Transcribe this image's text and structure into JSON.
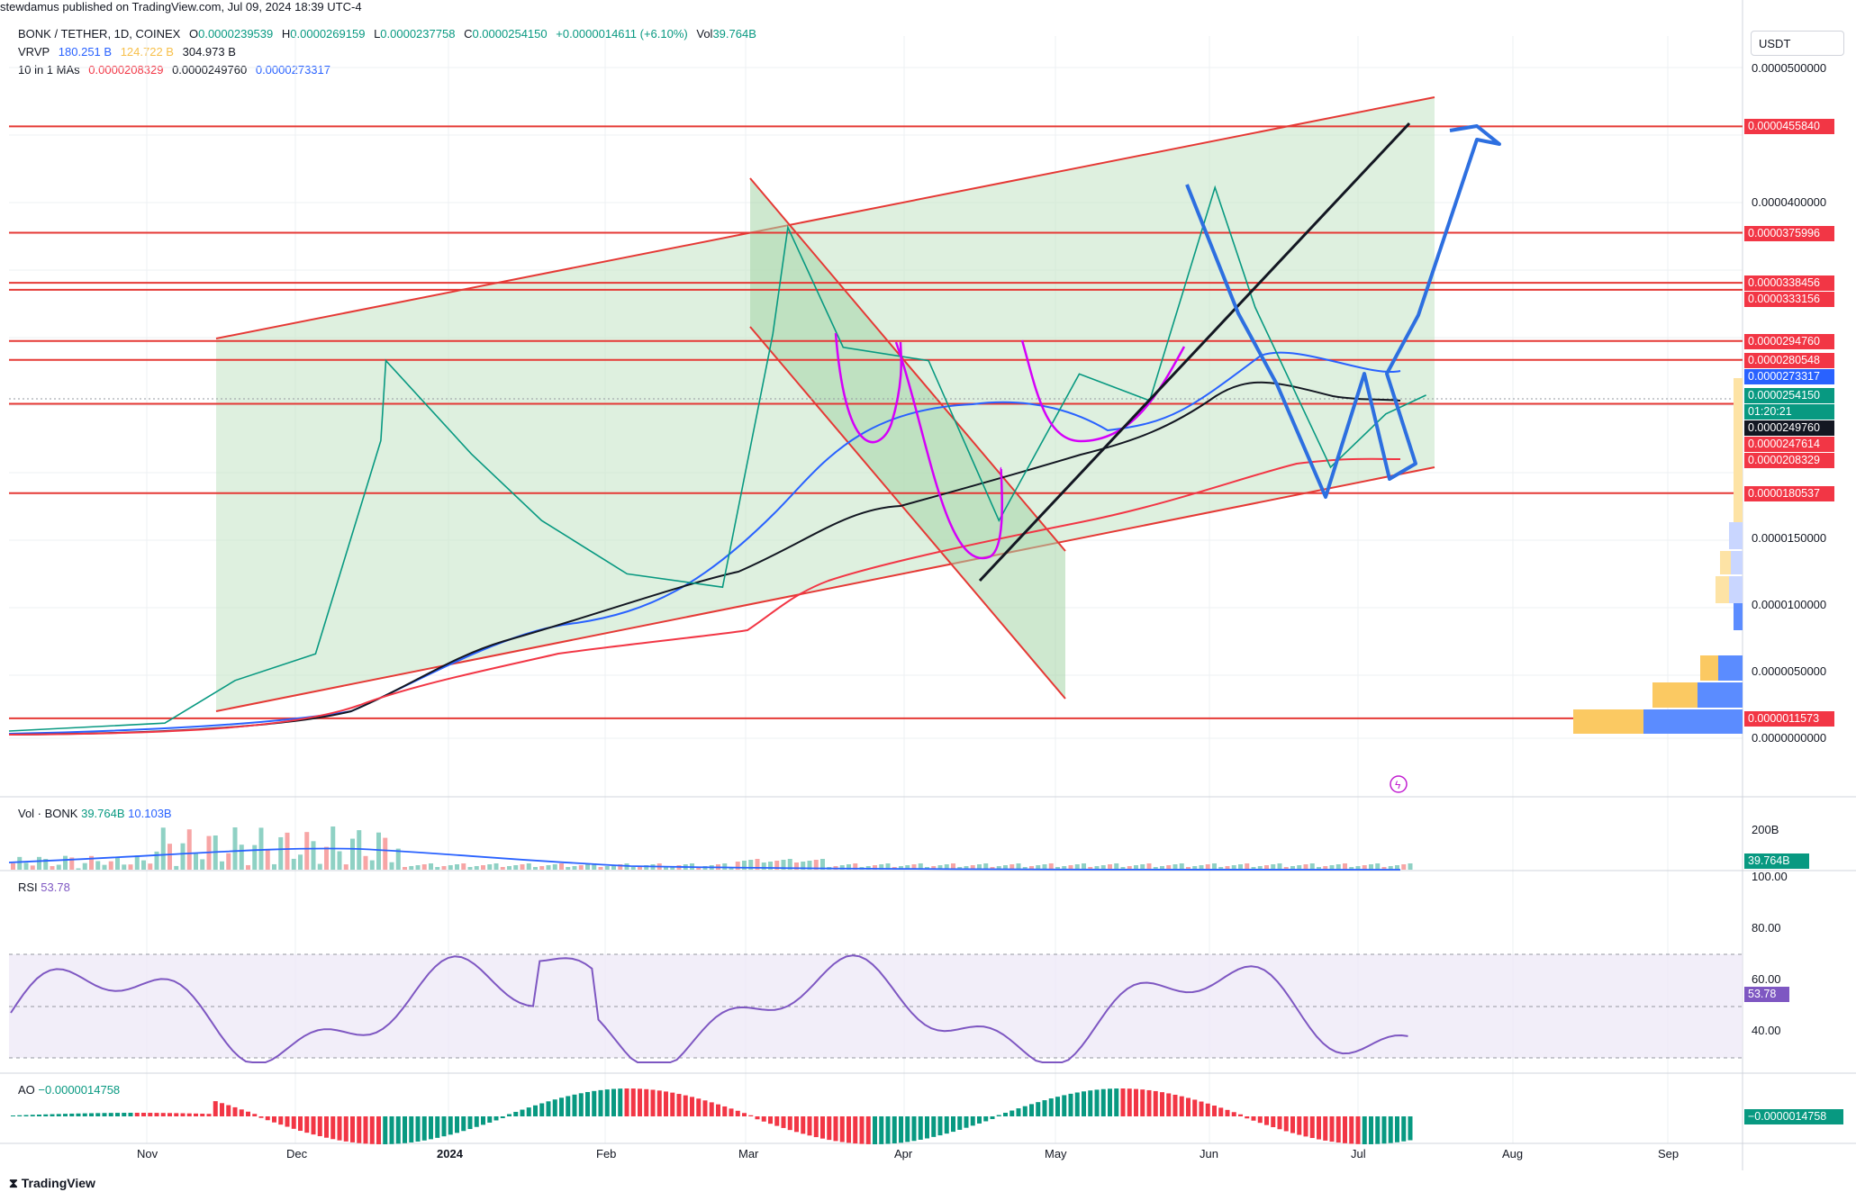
{
  "header": {
    "published": "stewdamus published on TradingView.com, Jul 09, 2024 18:39 UTC-4",
    "currency": "USDT"
  },
  "legend": {
    "symbol": "BONK / TETHER, 1D, COINEX",
    "ohlc": {
      "o_label": "O",
      "o": "0.0000239539",
      "h_label": "H",
      "h": "0.0000269159",
      "l_label": "L",
      "l": "0.0000237758",
      "c_label": "C",
      "c": "0.0000254150",
      "change": "+0.0000014611 (+6.10%)",
      "vol_label": "Vol",
      "vol": "39.764B"
    },
    "vrvp": {
      "label": "VRVP",
      "v1": "180.251 B",
      "v2": "124.722 B",
      "v3": "304.973 B"
    },
    "mas": {
      "label": "10 in 1 MAs",
      "ma1": "0.0000208329",
      "ma2": "0.0000249760",
      "ma3": "0.0000273317"
    }
  },
  "volume_pane": {
    "label": "Vol · BONK",
    "v1": "39.764B",
    "v2": "10.103B",
    "axis_label": "200B",
    "tag": "39.764B"
  },
  "rsi_pane": {
    "label": "RSI",
    "value": "53.78",
    "ticks": [
      "100.00",
      "80.00",
      "60.00",
      "40.00"
    ],
    "tag": "53.78"
  },
  "ao_pane": {
    "label": "AO",
    "value": "−0.0000014758",
    "tag": "−0.0000014758"
  },
  "price_axis": {
    "ticks": [
      "0.0000500000",
      "0.0000400000",
      "0.0000150000",
      "0.0000100000",
      "0.0000050000",
      "0.0000000000"
    ],
    "tags": [
      {
        "text": "0.0000455840",
        "color": "#f23645"
      },
      {
        "text": "0.0000375996",
        "color": "#f23645"
      },
      {
        "text": "0.0000338456",
        "color": "#f23645"
      },
      {
        "text": "0.0000333156",
        "color": "#f23645"
      },
      {
        "text": "0.0000294760",
        "color": "#f23645"
      },
      {
        "text": "0.0000280548",
        "color": "#f23645"
      },
      {
        "text": "0.0000273317",
        "color": "#2962ff"
      },
      {
        "text": "0.0000254150",
        "color": "#089981"
      },
      {
        "text": "01:20:21",
        "color": "#089981"
      },
      {
        "text": "0.0000249760",
        "color": "#131722"
      },
      {
        "text": "0.0000247614",
        "color": "#f23645"
      },
      {
        "text": "0.0000208329",
        "color": "#f23645"
      },
      {
        "text": "0.0000180537",
        "color": "#f23645"
      },
      {
        "text": "0.0000011573",
        "color": "#f23645"
      }
    ]
  },
  "time_axis": {
    "labels": [
      "Nov",
      "Dec",
      "2024",
      "Feb",
      "Mar",
      "Apr",
      "May",
      "Jun",
      "Jul",
      "Aug",
      "Sep"
    ]
  },
  "footer": {
    "brand": "TradingView"
  },
  "chart_data": {
    "type": "line",
    "title": "BONK / TETHER, 1D, COINEX",
    "x": [
      "2023-10-01",
      "2023-11-01",
      "2023-11-15",
      "2023-12-01",
      "2023-12-14",
      "2023-12-15",
      "2024-01-01",
      "2024-01-15",
      "2024-02-01",
      "2024-02-20",
      "2024-03-01",
      "2024-03-04",
      "2024-03-15",
      "2024-04-01",
      "2024-04-15",
      "2024-05-01",
      "2024-05-15",
      "2024-05-28",
      "2024-06-05",
      "2024-06-20",
      "2024-07-01",
      "2024-07-09"
    ],
    "series": [
      {
        "name": "BONK / TETHER",
        "values": [
          2e-07,
          8e-07,
          4e-06,
          6e-06,
          2.2e-05,
          2.8e-05,
          2.1e-05,
          1.6e-05,
          1.2e-05,
          1.1e-05,
          3e-05,
          3.8e-05,
          2.9e-05,
          2.8e-05,
          1.6e-05,
          2.7e-05,
          2.5e-05,
          4.1e-05,
          3.2e-05,
          2e-05,
          2.4e-05,
          2.5415e-05
        ]
      }
    ],
    "horizontal_levels": [
      "0.0000455840",
      "0.0000375996",
      "0.0000338456",
      "0.0000333156",
      "0.0000294760",
      "0.0000280548",
      "0.0000247614",
      "0.0000180537",
      "0.0000011573"
    ],
    "ylim": [
      0,
      5e-05
    ],
    "grid": true
  }
}
